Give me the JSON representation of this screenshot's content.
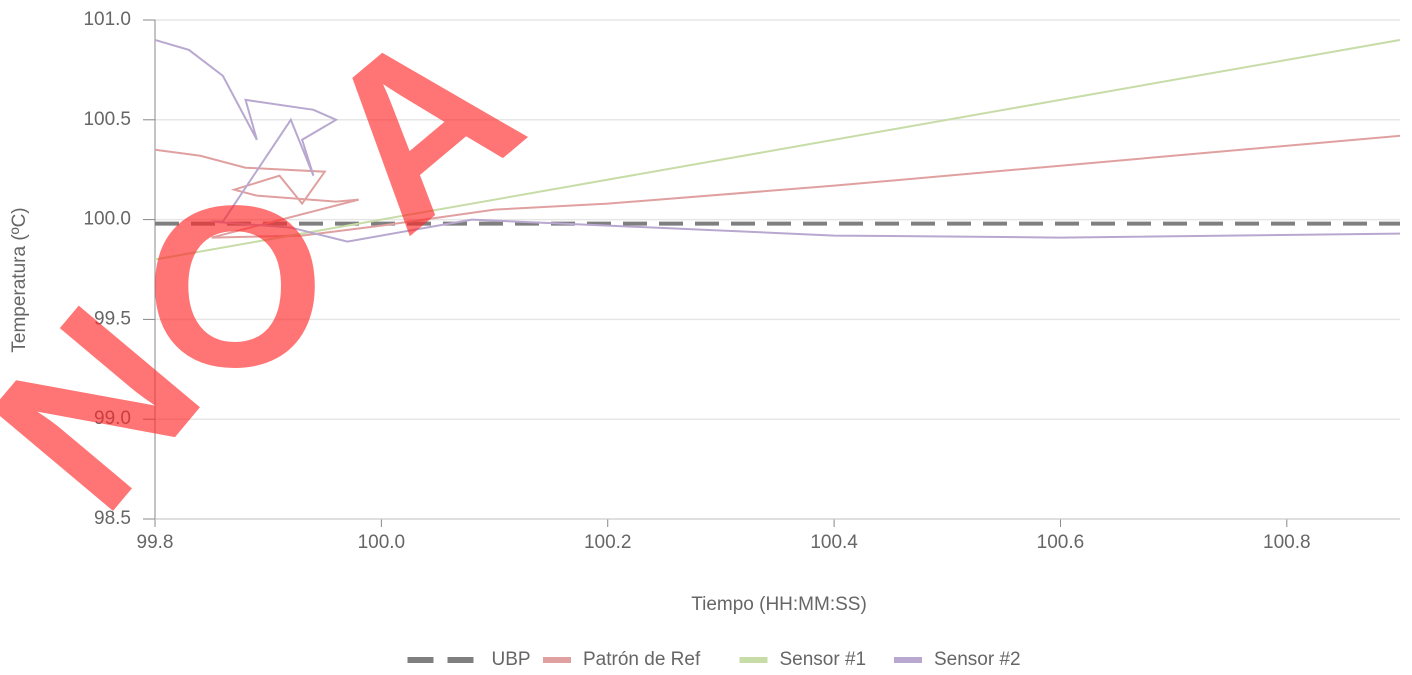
{
  "chart_data": {
    "type": "line",
    "xlabel": "Tiempo (HH:MM:SS)",
    "ylabel": "Temperatura (ºC)",
    "xlim": [
      99.8,
      100.9
    ],
    "ylim": [
      98.5,
      101.0
    ],
    "xticks": [
      99.8,
      {
        "value": 100.0,
        "label": "100.0"
      },
      100.2,
      100.4,
      100.6,
      100.8
    ],
    "yticks": [
      98.5,
      {
        "value": 99.0,
        "label": "99.0"
      },
      99.5,
      {
        "value": 100.0,
        "label": "100.0"
      },
      100.5,
      {
        "value": 101.0,
        "label": "101.0"
      }
    ],
    "grid": true,
    "legend": "bottom",
    "watermark": [
      "N",
      "O",
      "A"
    ],
    "series": [
      {
        "name": "UBP",
        "color": "#7f7f7f",
        "dashed": true,
        "x": [
          99.8,
          100.9
        ],
        "values": [
          99.98,
          99.98
        ]
      },
      {
        "name": "Patrón de Ref",
        "color": "#e0a0a0",
        "x": [
          99.8,
          99.84,
          99.88,
          99.95,
          99.93,
          99.91,
          99.87,
          99.89,
          99.96,
          99.98,
          99.85,
          99.93,
          100.0,
          100.1,
          100.2,
          100.4,
          100.6,
          100.9
        ],
        "values": [
          100.35,
          100.32,
          100.26,
          100.24,
          100.08,
          100.22,
          100.15,
          100.12,
          100.09,
          100.1,
          99.91,
          99.92,
          99.97,
          100.05,
          100.08,
          100.17,
          100.27,
          100.42
        ]
      },
      {
        "name": "Sensor #1",
        "color": "#c8dca8",
        "x": [
          99.8,
          100.35,
          100.9
        ],
        "values": [
          99.8,
          100.35,
          100.9
        ]
      },
      {
        "name": "Sensor #2",
        "color": "#b8a8d0",
        "x": [
          99.8,
          99.83,
          99.86,
          99.89,
          99.88,
          99.94,
          99.96,
          99.93,
          99.94,
          99.92,
          99.86,
          99.85,
          99.92,
          99.97,
          100.08,
          100.2,
          100.4,
          100.6,
          100.9
        ],
        "values": [
          100.9,
          100.85,
          100.72,
          100.4,
          100.6,
          100.55,
          100.5,
          100.4,
          100.22,
          100.5,
          99.99,
          99.99,
          99.96,
          99.89,
          100.0,
          99.97,
          99.92,
          99.91,
          99.93
        ]
      }
    ]
  }
}
